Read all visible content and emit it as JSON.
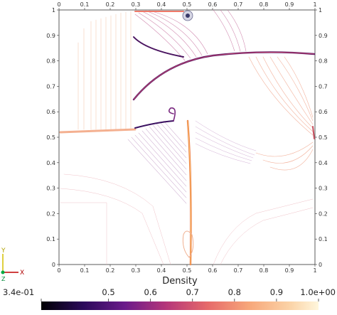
{
  "plot": {
    "x_ticks": [
      "0",
      "0.1",
      "0.2",
      "0.3",
      "0.4",
      "0.5",
      "0.6",
      "0.7",
      "0.8",
      "0.9",
      "1"
    ],
    "y_ticks": [
      "0",
      "0.1",
      "0.2",
      "0.3",
      "0.4",
      "0.5",
      "0.6",
      "0.7",
      "0.8",
      "0.9",
      "1"
    ],
    "colormap": "magma / inferno (dark purple to pale yellow)"
  },
  "colorbar": {
    "title": "Density",
    "labels": [
      "3.4e-01",
      "0.5",
      "0.6",
      "0.7",
      "0.8",
      "0.9",
      "1.0e+00"
    ],
    "range": [
      0.34,
      1.0
    ]
  },
  "axes_triad": {
    "y_label": "Y",
    "x_label": "X",
    "z_label": "Z"
  },
  "colors": {
    "dark": "#1a0b3a",
    "mid": "#b5367a",
    "light": "#f8e3b8"
  }
}
